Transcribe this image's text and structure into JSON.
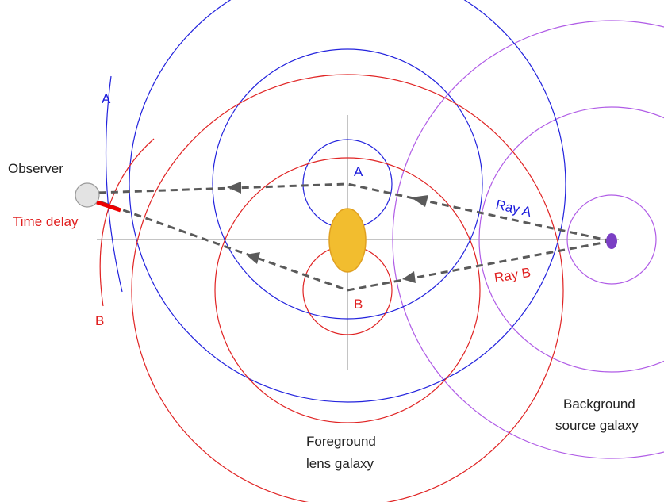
{
  "labels": {
    "observer": "Observer",
    "time_delay": "Time delay",
    "wavefront_a_top": "A",
    "wavefront_b_bottom": "B",
    "lens_image_a": "A",
    "lens_image_b": "B",
    "ray_a": "Ray A",
    "ray_b": "Ray B",
    "foreground_line1": "Foreground",
    "foreground_line2": "lens galaxy",
    "background_line1": "Background",
    "background_line2": "source galaxy"
  },
  "colors": {
    "path_a": "#2222dd",
    "path_b": "#e02424",
    "source": "#b05ce6",
    "source_galaxy": "#7b3fc4",
    "lens_galaxy_fill": "#f2bd2f",
    "lens_galaxy_stroke": "#e0a020",
    "ray": "#5a5a5a",
    "time_delay": "#ee0000",
    "axis": "#888888",
    "observer_fill": "#e3e3e3",
    "observer_stroke": "#9a9a9a"
  }
}
